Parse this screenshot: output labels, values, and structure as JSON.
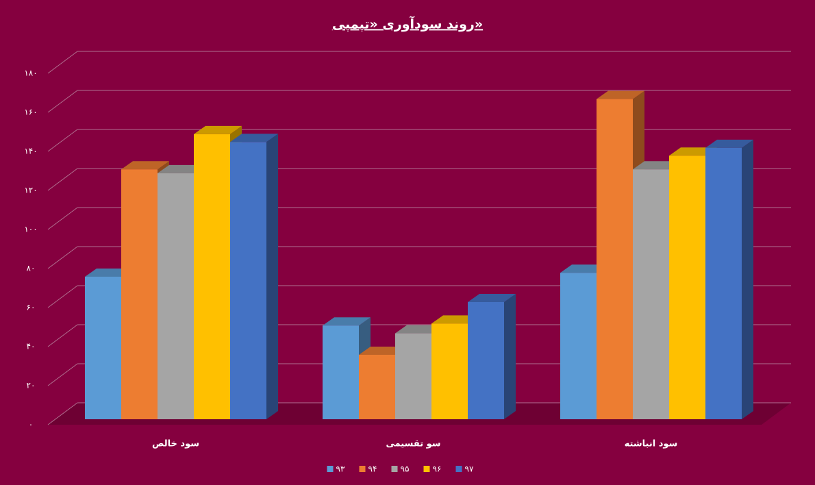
{
  "chart_data": {
    "type": "bar3d",
    "title": "روند سودآوری «تپمپی»",
    "categories": [
      "سود خالص",
      "سو تقسیمی",
      "سود انباشته"
    ],
    "series": [
      {
        "name": "۹۳",
        "color": "#5b9bd5",
        "values": [
          73,
          48,
          75
        ]
      },
      {
        "name": "۹۴",
        "color": "#ed7d31",
        "values": [
          128,
          33,
          164
        ]
      },
      {
        "name": "۹۵",
        "color": "#a5a5a5",
        "values": [
          126,
          44,
          128
        ]
      },
      {
        "name": "۹۶",
        "color": "#ffc000",
        "values": [
          146,
          49,
          135
        ]
      },
      {
        "name": "۹۷",
        "color": "#4472c4",
        "values": [
          142,
          60,
          139
        ]
      }
    ],
    "ylim": [
      0,
      180
    ],
    "yticks": [
      {
        "value": 0,
        "label": "۰"
      },
      {
        "value": 20,
        "label": "۲۰"
      },
      {
        "value": 40,
        "label": "۴۰"
      },
      {
        "value": 60,
        "label": "۶۰"
      },
      {
        "value": 80,
        "label": "۸۰"
      },
      {
        "value": 100,
        "label": "۱۰۰"
      },
      {
        "value": 120,
        "label": "۱۲۰"
      },
      {
        "value": 140,
        "label": "۱۴۰"
      },
      {
        "value": 160,
        "label": "۱۶۰"
      },
      {
        "value": 180,
        "label": "۱۸۰"
      }
    ],
    "grid": true
  }
}
